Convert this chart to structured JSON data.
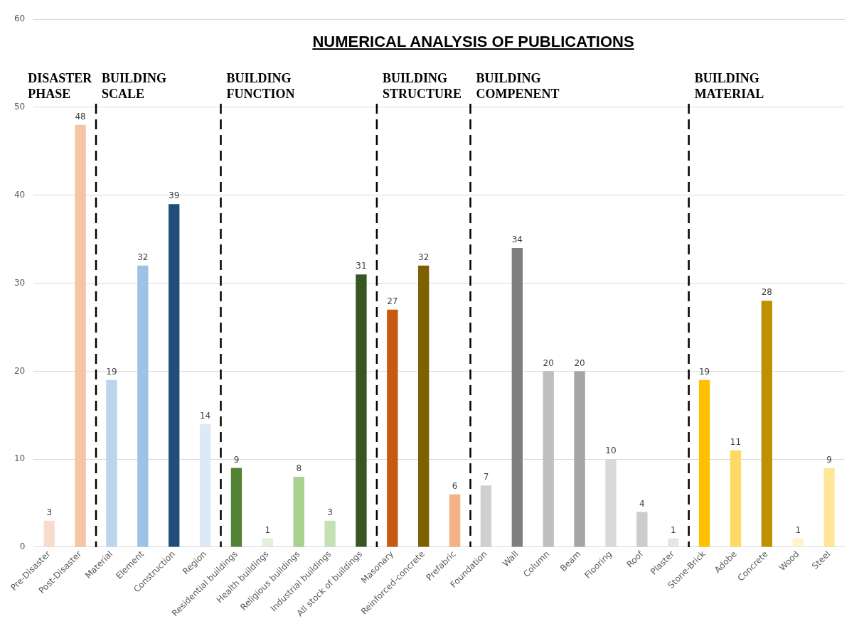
{
  "chart_data": {
    "type": "bar",
    "title": "NUMERICAL ANALYSIS OF PUBLICATIONS",
    "categories": [
      "Pre-Disaster",
      "Post-Disaster",
      "Material",
      "Element",
      "Construction",
      "Region",
      "Residential buildings",
      "Health buildings",
      "Religious buildings",
      "Industrial buildings",
      "All stock of buildings",
      "Masonary",
      "Reinforced-concrete",
      "Prefabric",
      "Foundation",
      "Wall",
      "Column",
      "Beam",
      "Flooring",
      "Roof",
      "Plaster",
      "Stone-Brick",
      "Adobe",
      "Concrete",
      "Wood",
      "Steel"
    ],
    "values": [
      3,
      48,
      19,
      32,
      39,
      14,
      9,
      1,
      8,
      3,
      31,
      27,
      32,
      6,
      7,
      34,
      20,
      20,
      10,
      4,
      1,
      19,
      11,
      28,
      1,
      9
    ],
    "colors": [
      "#f8dccb",
      "#f5c4a2",
      "#bcd5ec",
      "#9dc2e6",
      "#1f4e79",
      "#dce9f6",
      "#548235",
      "#e2efda",
      "#a9d18e",
      "#c5e0b4",
      "#375623",
      "#c55a11",
      "#7f6000",
      "#f4b183",
      "#d0cece",
      "#7f7f7f",
      "#bfbfbf",
      "#a5a5a5",
      "#d9d9d9",
      "#cccccc",
      "#e7e6e6",
      "#ffc000",
      "#ffd966",
      "#bf9000",
      "#fff2cc",
      "#ffe699"
    ],
    "ylim": [
      0,
      60
    ],
    "yticks": [
      0,
      10,
      20,
      30,
      40,
      50,
      60
    ],
    "grid": "y",
    "data_labels": true,
    "annotations": [
      "DISASTER PHASE",
      "BUILDING SCALE",
      "BUILDING FUNCTION",
      "BUILDING STRUCTURE",
      "BUILDING COMPENENT",
      "BUILDING MATERIAL"
    ]
  }
}
